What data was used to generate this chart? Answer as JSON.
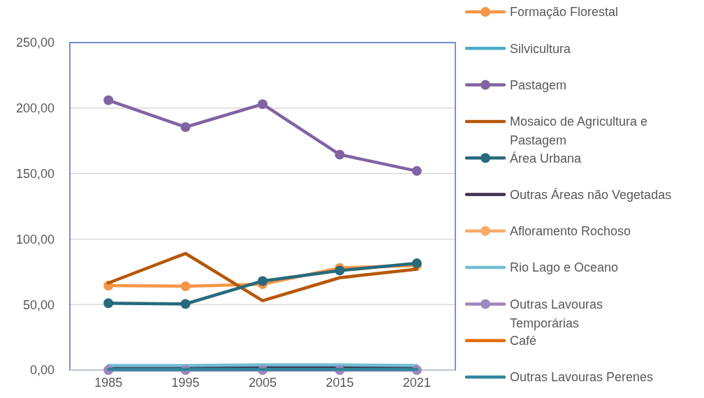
{
  "chart_data": {
    "type": "line",
    "categories": [
      "1985",
      "1995",
      "2005",
      "2015",
      "2021"
    ],
    "ylim": [
      0,
      250
    ],
    "yticks": [
      {
        "value": 0,
        "label": "0,00"
      },
      {
        "value": 50,
        "label": "50,00"
      },
      {
        "value": 100,
        "label": "100,00"
      },
      {
        "value": 150,
        "label": "150,00"
      },
      {
        "value": 200,
        "label": "200,00"
      },
      {
        "value": 250,
        "label": "250,00"
      }
    ],
    "grid": "y",
    "legend": "right",
    "line_style": "solid",
    "series": [
      {
        "name": "Formação Florestal",
        "color": "#f79646",
        "marker": "circle",
        "values": [
          64.5,
          64,
          65.5,
          78,
          80
        ]
      },
      {
        "name": "Silvicultura",
        "color": "#4bacc6",
        "marker": "none",
        "values": [
          null,
          null,
          null,
          null,
          null
        ]
      },
      {
        "name": "Pastagem",
        "color": "#8064a2",
        "marker": "circle",
        "values": [
          206,
          185.5,
          203,
          164.5,
          152
        ]
      },
      {
        "name": "Mosaico de Agricultura e Pastagem",
        "color": "#b65708",
        "marker": "none",
        "values": [
          66.5,
          89,
          53,
          70.5,
          77
        ]
      },
      {
        "name": "Área Urbana",
        "color": "#276a7c",
        "marker": "circle",
        "values": [
          51,
          50.5,
          68,
          76,
          81.5
        ]
      },
      {
        "name": "Outras Áreas não Vegetadas",
        "color": "#3f3151",
        "marker": "none",
        "values": [
          1.5,
          1.5,
          2,
          2,
          1.5
        ]
      },
      {
        "name": "Afloramento Rochoso",
        "color": "#f9ab6a",
        "marker": "circle",
        "values": [
          null,
          null,
          null,
          null,
          null
        ]
      },
      {
        "name": "Rio Lago e Oceano",
        "color": "#72bfd2",
        "marker": "none",
        "values": [
          3.5,
          3.5,
          4,
          4,
          3.5
        ]
      },
      {
        "name": "Outras Lavouras Temporárias",
        "color": "#9e87bd",
        "marker": "circle",
        "values": [
          0,
          0,
          0,
          0,
          0
        ]
      },
      {
        "name": "Café",
        "color": "#e46c0a",
        "marker": "none",
        "values": [
          null,
          null,
          null,
          null,
          null
        ]
      },
      {
        "name": "Outras Lavouras Perenes",
        "color": "#31859c",
        "marker": "none",
        "values": [
          0.5,
          0.5,
          0.5,
          0.5,
          0.5
        ]
      }
    ]
  }
}
